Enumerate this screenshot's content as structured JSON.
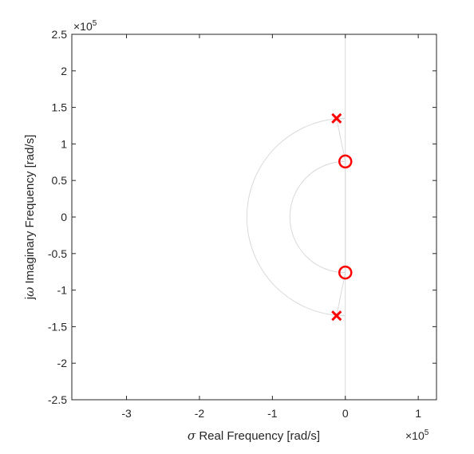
{
  "chart_data": {
    "type": "scatter",
    "title": "",
    "xlabel": {
      "symbol": "σ",
      "text": "Real Frequency [rad/s]"
    },
    "ylabel": {
      "symbol_prefix": "j",
      "symbol": "ω",
      "text": "Imaginary Frequency [rad/s]"
    },
    "exponent_label": {
      "base": "×10",
      "power": "5"
    },
    "xlim": [
      -3.75,
      1.25
    ],
    "ylim": [
      -2.5,
      2.5
    ],
    "scale_factor": 100000,
    "xticks": [
      -3,
      -2,
      -1,
      0,
      1
    ],
    "xtick_labels": [
      "-3",
      "-2",
      "-1",
      "0",
      "1"
    ],
    "yticks": [
      -2.5,
      -2,
      -1.5,
      -1,
      -0.5,
      0,
      0.5,
      1,
      1.5,
      2,
      2.5
    ],
    "ytick_labels": [
      "-2.5",
      "-2",
      "-1.5",
      "-1",
      "-0.5",
      "0",
      "0.5",
      "1",
      "1.5",
      "2",
      "2.5"
    ],
    "grid": false,
    "series": [
      {
        "marker": "x",
        "color": "#ff0000",
        "points": [
          [
            -0.12,
            1.35
          ],
          [
            -0.12,
            -1.35
          ]
        ]
      },
      {
        "marker": "o",
        "color": "#ff0000",
        "points": [
          [
            0.0,
            0.76
          ],
          [
            0.0,
            -0.76
          ]
        ]
      }
    ],
    "guide_color": "#d9d9d9",
    "guide_arcs": [
      1.35,
      0.76
    ]
  }
}
